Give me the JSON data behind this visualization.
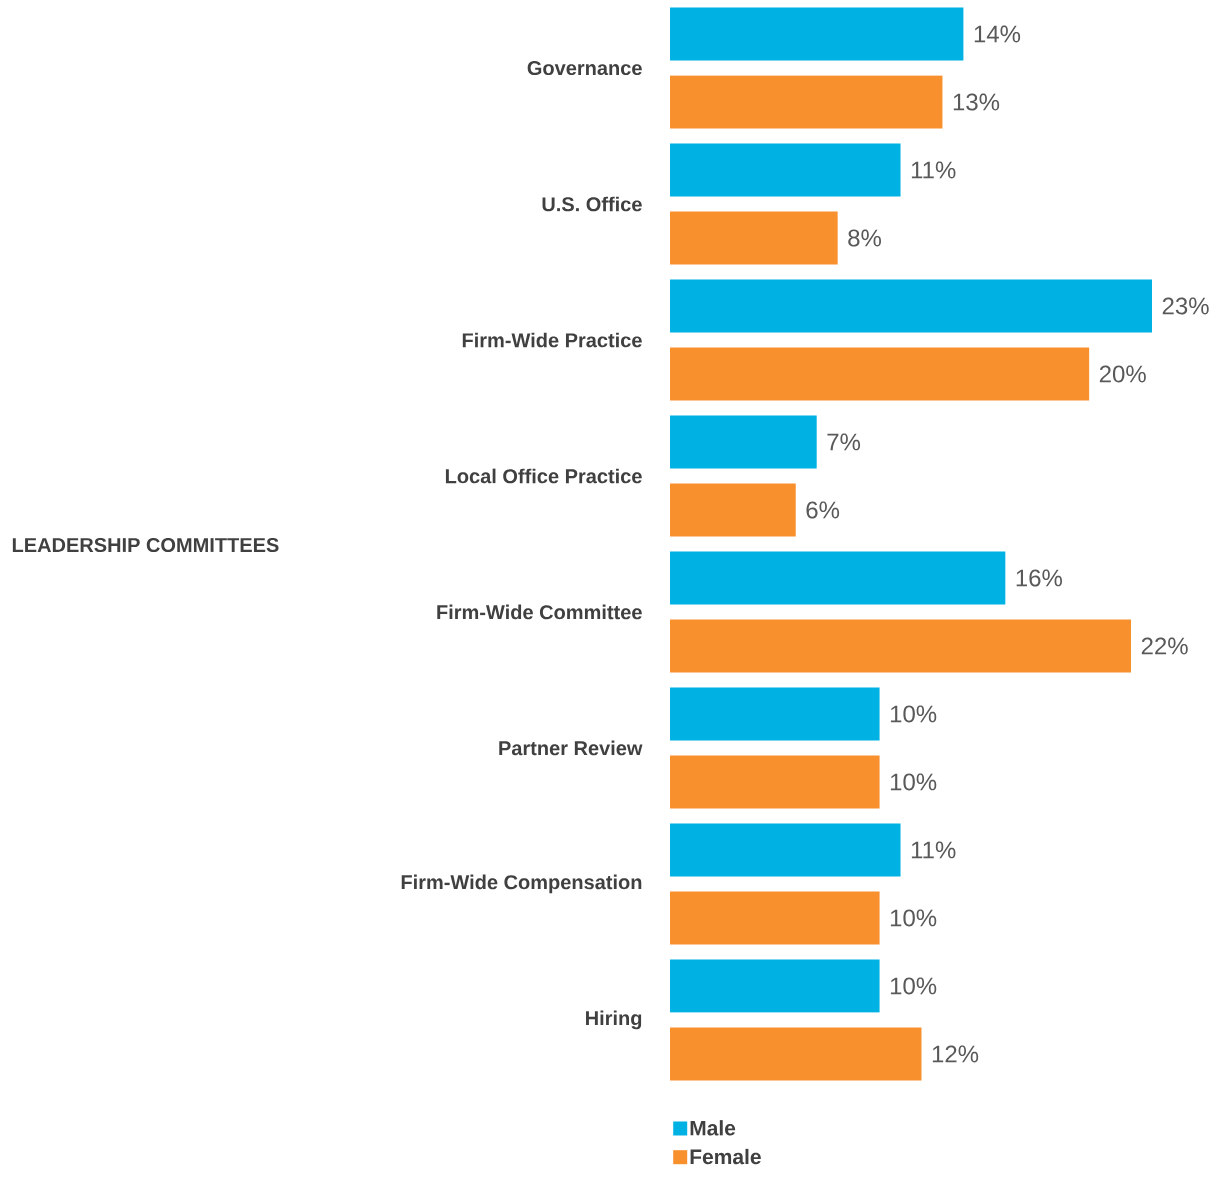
{
  "chart_data": {
    "type": "bar",
    "orientation": "horizontal",
    "annotations": [
      "LEADERSHIP COMMITTEES"
    ],
    "categories": [
      "Governance",
      "U.S. Office",
      "Firm-Wide Practice",
      "Local Office Practice",
      "Firm-Wide Committee",
      "Partner Review",
      "Firm-Wide Compensation",
      "Hiring"
    ],
    "series": [
      {
        "name": "Male",
        "color": "#00b2e3",
        "values": [
          14,
          11,
          23,
          7,
          16,
          10,
          11,
          10
        ],
        "value_labels": [
          "14%",
          "11%",
          "23%",
          "7%",
          "16%",
          "10%",
          "11%",
          "10%"
        ]
      },
      {
        "name": "Female",
        "color": "#f7902d",
        "values": [
          13,
          8,
          20,
          6,
          22,
          10,
          10,
          12
        ],
        "value_labels": [
          "13%",
          "8%",
          "20%",
          "6%",
          "22%",
          "10%",
          "10%",
          "12%"
        ]
      }
    ],
    "legend": "bottom"
  }
}
